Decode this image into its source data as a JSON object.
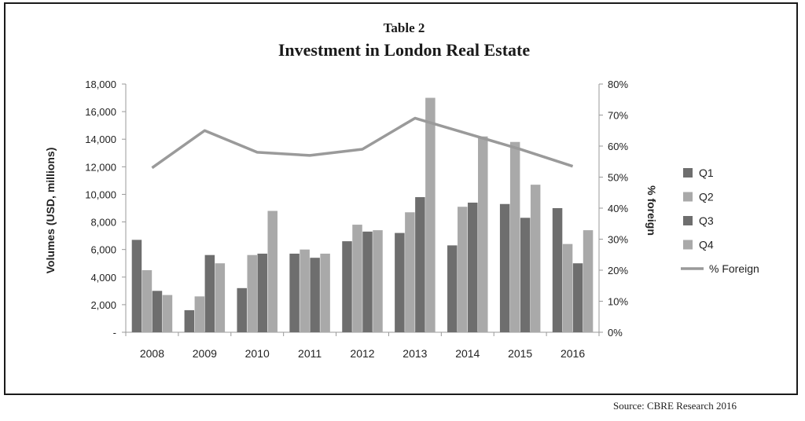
{
  "chart_data": {
    "type": "bar",
    "supertitle": "Table 2",
    "title": "Investment in London Real Estate",
    "categories": [
      "2008",
      "2009",
      "2010",
      "2011",
      "2012",
      "2013",
      "2014",
      "2015",
      "2016"
    ],
    "series": [
      {
        "name": "Q1",
        "kind": "bar",
        "axis": "left",
        "color": "#6e6e6e",
        "values": [
          6700,
          1600,
          3200,
          5700,
          6600,
          7200,
          6300,
          9300,
          9000
        ]
      },
      {
        "name": "Q2",
        "kind": "bar",
        "axis": "left",
        "color": "#a9a9a9",
        "values": [
          4500,
          2600,
          5600,
          6000,
          7800,
          8700,
          9100,
          13800,
          6400
        ]
      },
      {
        "name": "Q3",
        "kind": "bar",
        "axis": "left",
        "color": "#6e6e6e",
        "values": [
          3000,
          5600,
          5700,
          5400,
          7300,
          9800,
          9400,
          8300,
          5000
        ]
      },
      {
        "name": "Q4",
        "kind": "bar",
        "axis": "left",
        "color": "#a9a9a9",
        "values": [
          2700,
          5000,
          8800,
          5700,
          7400,
          17000,
          14200,
          10700,
          7400
        ]
      },
      {
        "name": "% Foreign",
        "kind": "line",
        "axis": "right",
        "color": "#9a9a9a",
        "values": [
          53,
          65,
          58,
          57,
          59,
          69,
          64,
          59,
          53.5
        ]
      }
    ],
    "ylabel": "Volumes (USD, millions)",
    "y2label": "% foreign",
    "ylim": [
      0,
      18000
    ],
    "y2lim": [
      0,
      80
    ],
    "yticks": [
      0,
      2000,
      4000,
      6000,
      8000,
      10000,
      12000,
      14000,
      16000,
      18000
    ],
    "yticklabels": [
      "-",
      "2,000",
      "4,000",
      "6,000",
      "8,000",
      "10,000",
      "12,000",
      "14,000",
      "16,000",
      "18,000"
    ],
    "y2ticks": [
      0,
      10,
      20,
      30,
      40,
      50,
      60,
      70,
      80
    ],
    "y2ticklabels": [
      "0%",
      "10%",
      "20%",
      "30%",
      "40%",
      "50%",
      "60%",
      "70%",
      "80%"
    ],
    "grid": false,
    "legend_position": "right"
  },
  "source": "Source: CBRE  Research 2016"
}
